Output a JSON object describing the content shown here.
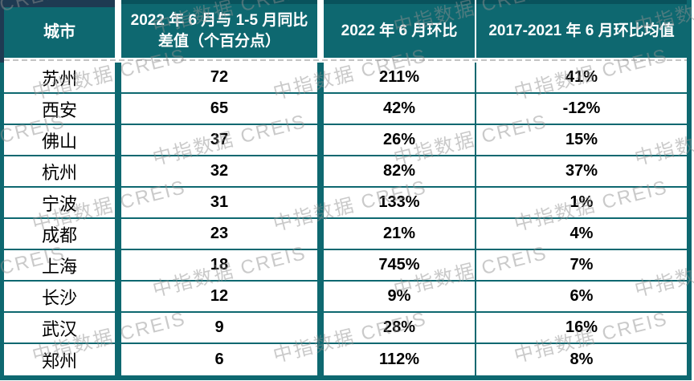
{
  "watermark": {
    "text": "中指数据 CREIS"
  },
  "colors": {
    "header_teal": "#0E6870",
    "border_teal_dark": "#09525C",
    "corner_navy": "#1E3A52",
    "dashed_line_gray": "#C4C4C4",
    "watermark_gray": "#919191",
    "body_text": "#000000",
    "header_text": "#FFFFFF"
  },
  "chart_data": {
    "type": "table",
    "title": "",
    "columns": [
      "城市",
      "2022 年 6 月与 1-5 月同比差值（个百分点）",
      "2022 年 6 月环比",
      "2017-2021 年 6 月环比均值"
    ],
    "rows": [
      [
        "苏州",
        "72",
        "211%",
        "41%"
      ],
      [
        "西安",
        "65",
        "42%",
        "-12%"
      ],
      [
        "佛山",
        "37",
        "26%",
        "15%"
      ],
      [
        "杭州",
        "32",
        "82%",
        "37%"
      ],
      [
        "宁波",
        "31",
        "133%",
        "1%"
      ],
      [
        "成都",
        "23",
        "21%",
        "4%"
      ],
      [
        "上海",
        "18",
        "745%",
        "7%"
      ],
      [
        "长沙",
        "12",
        "9%",
        "6%"
      ],
      [
        "武汉",
        "9",
        "28%",
        "16%"
      ],
      [
        "郑州",
        "6",
        "112%",
        "8%"
      ]
    ]
  }
}
